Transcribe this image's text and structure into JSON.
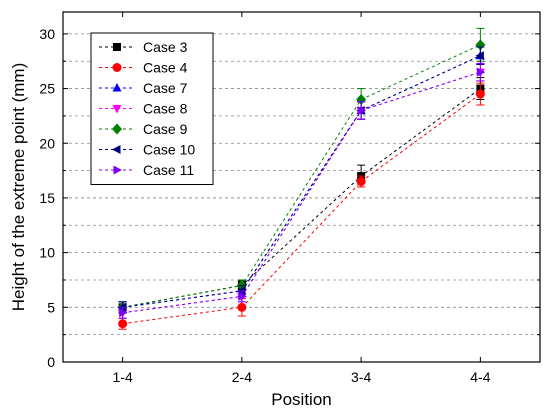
{
  "chart_data": {
    "type": "line",
    "title": "",
    "xlabel": "Position",
    "ylabel": "Height of the extreme point (mm)",
    "categories": [
      "1-4",
      "2-4",
      "3-4",
      "4-4"
    ],
    "ylim": [
      0,
      32
    ],
    "yticks": [
      0,
      5,
      10,
      15,
      20,
      25,
      30
    ],
    "grid": true,
    "legend_position": "top-left",
    "series": [
      {
        "name": "Case 3",
        "color": "#000000",
        "marker": "square",
        "values": [
          5.0,
          7.0,
          17.0,
          25.0
        ],
        "errors": [
          0.5,
          0.4,
          1.0,
          1.0
        ]
      },
      {
        "name": "Case 4",
        "color": "#ff0000",
        "marker": "circle",
        "values": [
          3.5,
          5.0,
          16.5,
          24.5
        ],
        "errors": [
          0.5,
          0.8,
          0.5,
          1.0
        ]
      },
      {
        "name": "Case 7",
        "color": "#0000ff",
        "marker": "triangle-up",
        "values": [
          5.0,
          6.5,
          23.0,
          28.0
        ],
        "errors": [
          0.5,
          0.5,
          0.8,
          0.8
        ]
      },
      {
        "name": "Case 8",
        "color": "#ff00ff",
        "marker": "triangle-down",
        "values": [
          4.5,
          6.0,
          23.0,
          26.5
        ],
        "errors": [
          0.5,
          0.5,
          0.8,
          0.8
        ]
      },
      {
        "name": "Case 9",
        "color": "#008000",
        "marker": "diamond",
        "values": [
          5.0,
          7.0,
          24.0,
          29.0
        ],
        "errors": [
          0.5,
          0.5,
          1.0,
          1.5
        ]
      },
      {
        "name": "Case 10",
        "color": "#000080",
        "marker": "triangle-left",
        "values": [
          5.0,
          6.5,
          23.0,
          28.0
        ],
        "errors": [
          0.5,
          0.5,
          0.8,
          0.8
        ]
      },
      {
        "name": "Case 11",
        "color": "#8000ff",
        "marker": "triangle-right",
        "values": [
          4.5,
          6.0,
          23.0,
          26.5
        ],
        "errors": [
          0.5,
          0.5,
          0.8,
          0.8
        ]
      }
    ]
  }
}
